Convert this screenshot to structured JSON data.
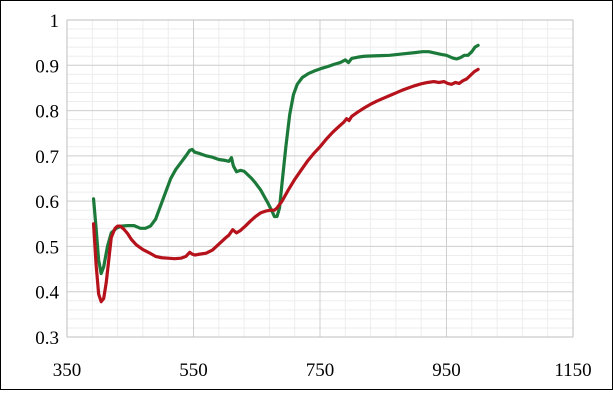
{
  "chart_data": {
    "type": "line",
    "title": "",
    "xlabel": "",
    "ylabel": "",
    "xlim": [
      350,
      1150
    ],
    "ylim": [
      0.3,
      1.0
    ],
    "x_ticks": [
      "350",
      "550",
      "750",
      "950",
      "1150"
    ],
    "y_ticks": [
      "0.3",
      "0.4",
      "0.5",
      "0.6",
      "0.7",
      "0.8",
      "0.9",
      "1"
    ],
    "grid": true,
    "legend": "none",
    "series": [
      {
        "color": "#1b7a3a",
        "points": [
          [
            392,
            0.605
          ],
          [
            396,
            0.54
          ],
          [
            400,
            0.47
          ],
          [
            404,
            0.44
          ],
          [
            408,
            0.455
          ],
          [
            414,
            0.5
          ],
          [
            420,
            0.53
          ],
          [
            428,
            0.54
          ],
          [
            436,
            0.545
          ],
          [
            446,
            0.546
          ],
          [
            456,
            0.546
          ],
          [
            466,
            0.54
          ],
          [
            474,
            0.54
          ],
          [
            482,
            0.545
          ],
          [
            490,
            0.56
          ],
          [
            498,
            0.59
          ],
          [
            506,
            0.62
          ],
          [
            514,
            0.65
          ],
          [
            522,
            0.67
          ],
          [
            530,
            0.685
          ],
          [
            538,
            0.7
          ],
          [
            544,
            0.712
          ],
          [
            548,
            0.714
          ],
          [
            552,
            0.708
          ],
          [
            560,
            0.705
          ],
          [
            570,
            0.7
          ],
          [
            580,
            0.697
          ],
          [
            590,
            0.692
          ],
          [
            600,
            0.69
          ],
          [
            606,
            0.688
          ],
          [
            610,
            0.696
          ],
          [
            613,
            0.678
          ],
          [
            618,
            0.665
          ],
          [
            624,
            0.668
          ],
          [
            630,
            0.666
          ],
          [
            636,
            0.658
          ],
          [
            642,
            0.65
          ],
          [
            648,
            0.64
          ],
          [
            656,
            0.625
          ],
          [
            662,
            0.61
          ],
          [
            668,
            0.595
          ],
          [
            674,
            0.578
          ],
          [
            678,
            0.566
          ],
          [
            682,
            0.566
          ],
          [
            686,
            0.585
          ],
          [
            690,
            0.64
          ],
          [
            696,
            0.72
          ],
          [
            702,
            0.79
          ],
          [
            708,
            0.835
          ],
          [
            714,
            0.858
          ],
          [
            722,
            0.873
          ],
          [
            732,
            0.882
          ],
          [
            742,
            0.888
          ],
          [
            752,
            0.893
          ],
          [
            762,
            0.897
          ],
          [
            772,
            0.902
          ],
          [
            782,
            0.906
          ],
          [
            790,
            0.912
          ],
          [
            795,
            0.906
          ],
          [
            800,
            0.915
          ],
          [
            810,
            0.918
          ],
          [
            820,
            0.92
          ],
          [
            840,
            0.921
          ],
          [
            860,
            0.922
          ],
          [
            880,
            0.925
          ],
          [
            900,
            0.928
          ],
          [
            912,
            0.93
          ],
          [
            922,
            0.93
          ],
          [
            932,
            0.927
          ],
          [
            942,
            0.924
          ],
          [
            950,
            0.922
          ],
          [
            960,
            0.916
          ],
          [
            966,
            0.914
          ],
          [
            972,
            0.917
          ],
          [
            978,
            0.922
          ],
          [
            984,
            0.922
          ],
          [
            990,
            0.93
          ],
          [
            995,
            0.94
          ],
          [
            1000,
            0.944
          ]
        ]
      },
      {
        "color": "#b5121b",
        "points": [
          [
            392,
            0.55
          ],
          [
            396,
            0.46
          ],
          [
            400,
            0.395
          ],
          [
            404,
            0.378
          ],
          [
            408,
            0.385
          ],
          [
            412,
            0.42
          ],
          [
            416,
            0.47
          ],
          [
            420,
            0.52
          ],
          [
            426,
            0.54
          ],
          [
            430,
            0.545
          ],
          [
            434,
            0.545
          ],
          [
            440,
            0.538
          ],
          [
            446,
            0.528
          ],
          [
            452,
            0.515
          ],
          [
            460,
            0.503
          ],
          [
            470,
            0.493
          ],
          [
            480,
            0.486
          ],
          [
            490,
            0.478
          ],
          [
            500,
            0.475
          ],
          [
            510,
            0.474
          ],
          [
            520,
            0.473
          ],
          [
            530,
            0.474
          ],
          [
            538,
            0.478
          ],
          [
            544,
            0.487
          ],
          [
            548,
            0.483
          ],
          [
            552,
            0.481
          ],
          [
            560,
            0.483
          ],
          [
            570,
            0.485
          ],
          [
            580,
            0.492
          ],
          [
            590,
            0.505
          ],
          [
            600,
            0.518
          ],
          [
            606,
            0.525
          ],
          [
            612,
            0.537
          ],
          [
            618,
            0.53
          ],
          [
            624,
            0.535
          ],
          [
            632,
            0.545
          ],
          [
            640,
            0.556
          ],
          [
            648,
            0.566
          ],
          [
            656,
            0.574
          ],
          [
            664,
            0.578
          ],
          [
            672,
            0.58
          ],
          [
            678,
            0.58
          ],
          [
            682,
            0.585
          ],
          [
            690,
            0.6
          ],
          [
            700,
            0.625
          ],
          [
            710,
            0.648
          ],
          [
            720,
            0.668
          ],
          [
            730,
            0.688
          ],
          [
            740,
            0.705
          ],
          [
            750,
            0.72
          ],
          [
            760,
            0.737
          ],
          [
            770,
            0.752
          ],
          [
            780,
            0.765
          ],
          [
            788,
            0.775
          ],
          [
            792,
            0.782
          ],
          [
            796,
            0.778
          ],
          [
            800,
            0.787
          ],
          [
            810,
            0.797
          ],
          [
            820,
            0.806
          ],
          [
            830,
            0.814
          ],
          [
            840,
            0.821
          ],
          [
            850,
            0.827
          ],
          [
            860,
            0.833
          ],
          [
            870,
            0.839
          ],
          [
            880,
            0.845
          ],
          [
            890,
            0.85
          ],
          [
            900,
            0.855
          ],
          [
            910,
            0.859
          ],
          [
            920,
            0.862
          ],
          [
            930,
            0.864
          ],
          [
            938,
            0.862
          ],
          [
            946,
            0.864
          ],
          [
            952,
            0.86
          ],
          [
            958,
            0.858
          ],
          [
            964,
            0.862
          ],
          [
            970,
            0.86
          ],
          [
            976,
            0.866
          ],
          [
            982,
            0.87
          ],
          [
            988,
            0.878
          ],
          [
            994,
            0.886
          ],
          [
            1000,
            0.891
          ]
        ]
      }
    ]
  }
}
